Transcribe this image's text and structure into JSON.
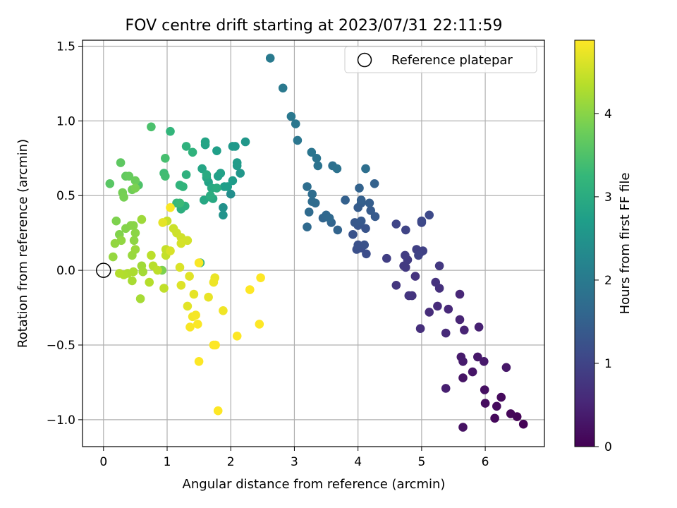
{
  "chart_data": {
    "type": "scatter",
    "title": "FOV centre drift starting at 2023/07/31 22:11:59",
    "xlabel": "Angular distance from reference (arcmin)",
    "ylabel": "Rotation from reference (arcmin)",
    "xlim": [
      -0.33,
      6.93
    ],
    "ylim": [
      -1.18,
      1.54
    ],
    "xticks": [
      0,
      1,
      2,
      3,
      4,
      5,
      6
    ],
    "yticks": [
      -1.0,
      -0.5,
      0.0,
      0.5,
      1.0,
      1.5
    ],
    "ytick_labels": [
      "−1.0",
      "−0.5",
      "0.0",
      "0.5",
      "1.0",
      "1.5"
    ],
    "grid": true,
    "legend": {
      "position": "top-right",
      "entries": [
        "Reference platepar"
      ]
    },
    "reference_point": {
      "x": 0,
      "y": 0
    },
    "colorbar": {
      "label": "Hours from first FF file",
      "colormap": "viridis",
      "range": [
        0,
        4.88
      ],
      "ticks": [
        0,
        1,
        2,
        3,
        4
      ],
      "colors": [
        "#440154",
        "#482878",
        "#3e4989",
        "#31688e",
        "#26828e",
        "#1f9e89",
        "#35b779",
        "#6ece58",
        "#b5de2b",
        "#fde725"
      ]
    },
    "points": [
      [
        6.6,
        -1.03,
        0.02
      ],
      [
        6.5,
        -0.98,
        0.05
      ],
      [
        6.4,
        -0.96,
        0.08
      ],
      [
        6.15,
        -0.99,
        0.1
      ],
      [
        6.25,
        -0.85,
        0.12
      ],
      [
        6.18,
        -0.91,
        0.14
      ],
      [
        6.0,
        -0.89,
        0.17
      ],
      [
        5.99,
        -0.8,
        0.2
      ],
      [
        5.65,
        -1.05,
        0.23
      ],
      [
        5.65,
        -0.72,
        0.26
      ],
      [
        5.8,
        -0.68,
        0.28
      ],
      [
        6.33,
        -0.65,
        0.3
      ],
      [
        5.88,
        -0.58,
        0.32
      ],
      [
        5.98,
        -0.61,
        0.34
      ],
      [
        5.62,
        -0.58,
        0.36
      ],
      [
        5.65,
        -0.61,
        0.38
      ],
      [
        5.38,
        -0.79,
        0.42
      ],
      [
        5.9,
        -0.38,
        0.45
      ],
      [
        5.67,
        -0.4,
        0.48
      ],
      [
        5.6,
        -0.33,
        0.5
      ],
      [
        5.6,
        -0.16,
        0.53
      ],
      [
        5.42,
        -0.26,
        0.56
      ],
      [
        5.38,
        -0.42,
        0.58
      ],
      [
        5.25,
        -0.24,
        0.6
      ],
      [
        5.12,
        -0.28,
        0.62
      ],
      [
        4.98,
        -0.39,
        0.65
      ],
      [
        5.28,
        -0.12,
        0.68
      ],
      [
        5.22,
        -0.08,
        0.7
      ],
      [
        4.9,
        -0.04,
        0.72
      ],
      [
        4.85,
        -0.17,
        0.74
      ],
      [
        4.8,
        -0.17,
        0.76
      ],
      [
        4.6,
        -0.1,
        0.78
      ],
      [
        5.28,
        0.03,
        0.8
      ],
      [
        4.75,
        0.02,
        0.82
      ],
      [
        4.72,
        0.03,
        0.84
      ],
      [
        4.78,
        0.07,
        0.86
      ],
      [
        4.74,
        0.1,
        0.88
      ],
      [
        4.45,
        0.08,
        0.9
      ],
      [
        4.98,
        0.12,
        0.92
      ],
      [
        4.92,
        0.14,
        0.94
      ],
      [
        5.02,
        0.13,
        0.96
      ],
      [
        4.95,
        0.1,
        0.98
      ],
      [
        4.75,
        0.27,
        1.0
      ],
      [
        4.6,
        0.31,
        1.02
      ],
      [
        5.0,
        0.32,
        1.05
      ],
      [
        5.0,
        0.33,
        1.08
      ],
      [
        5.12,
        0.37,
        1.1
      ],
      [
        4.13,
        0.11,
        1.15
      ],
      [
        4.05,
        0.15,
        1.18
      ],
      [
        3.98,
        0.14,
        1.2
      ],
      [
        4.0,
        0.17,
        1.22
      ],
      [
        4.1,
        0.17,
        1.24
      ],
      [
        3.92,
        0.24,
        1.26
      ],
      [
        4.12,
        0.28,
        1.28
      ],
      [
        4.0,
        0.3,
        1.3
      ],
      [
        4.02,
        0.32,
        1.32
      ],
      [
        3.95,
        0.32,
        1.34
      ],
      [
        4.05,
        0.33,
        1.36
      ],
      [
        4.27,
        0.36,
        1.38
      ],
      [
        4.2,
        0.4,
        1.4
      ],
      [
        4.0,
        0.42,
        1.42
      ],
      [
        4.05,
        0.45,
        1.44
      ],
      [
        4.18,
        0.45,
        1.46
      ],
      [
        4.05,
        0.47,
        1.48
      ],
      [
        3.8,
        0.47,
        1.5
      ],
      [
        4.26,
        0.58,
        1.52
      ],
      [
        4.02,
        0.55,
        1.54
      ],
      [
        3.68,
        0.27,
        1.56
      ],
      [
        3.58,
        0.32,
        1.58
      ],
      [
        3.45,
        0.35,
        1.6
      ],
      [
        3.5,
        0.37,
        1.62
      ],
      [
        3.55,
        0.35,
        1.64
      ],
      [
        3.2,
        0.29,
        1.66
      ],
      [
        3.23,
        0.39,
        1.68
      ],
      [
        3.33,
        0.45,
        1.7
      ],
      [
        3.28,
        0.46,
        1.72
      ],
      [
        3.28,
        0.51,
        1.74
      ],
      [
        3.2,
        0.56,
        1.76
      ],
      [
        4.12,
        0.68,
        1.78
      ],
      [
        3.6,
        0.7,
        1.8
      ],
      [
        3.67,
        0.68,
        1.83
      ],
      [
        3.37,
        0.7,
        1.86
      ],
      [
        3.35,
        0.75,
        1.88
      ],
      [
        3.27,
        0.79,
        1.9
      ],
      [
        3.05,
        0.87,
        1.92
      ],
      [
        3.02,
        0.98,
        1.94
      ],
      [
        2.95,
        1.03,
        1.96
      ],
      [
        2.82,
        1.22,
        1.98
      ],
      [
        2.62,
        1.42,
        2.0
      ],
      [
        2.0,
        0.51,
        2.4
      ],
      [
        1.88,
        0.42,
        2.45
      ],
      [
        1.88,
        0.37,
        2.5
      ],
      [
        2.15,
        0.65,
        2.55
      ],
      [
        2.23,
        0.86,
        2.58
      ],
      [
        2.07,
        0.83,
        2.6
      ],
      [
        2.03,
        0.83,
        2.62
      ],
      [
        2.1,
        0.7,
        2.64
      ],
      [
        2.1,
        0.72,
        2.66
      ],
      [
        2.03,
        0.6,
        2.68
      ],
      [
        1.95,
        0.56,
        2.7
      ],
      [
        1.9,
        0.56,
        2.72
      ],
      [
        1.78,
        0.8,
        2.74
      ],
      [
        1.8,
        0.63,
        2.76
      ],
      [
        1.84,
        0.65,
        2.78
      ],
      [
        1.65,
        0.59,
        2.8
      ],
      [
        1.6,
        0.84,
        2.82
      ],
      [
        1.6,
        0.86,
        2.84
      ],
      [
        1.55,
        0.68,
        2.86
      ],
      [
        1.62,
        0.62,
        2.88
      ],
      [
        1.58,
        0.47,
        2.9
      ],
      [
        1.72,
        0.48,
        2.92
      ],
      [
        1.7,
        0.55,
        2.94
      ],
      [
        1.68,
        0.49,
        2.96
      ],
      [
        1.62,
        0.64,
        2.98
      ],
      [
        1.78,
        0.55,
        3.0
      ],
      [
        1.68,
        0.5,
        3.02
      ],
      [
        1.22,
        0.41,
        3.06
      ],
      [
        1.28,
        0.43,
        3.08
      ],
      [
        1.3,
        0.64,
        3.1
      ],
      [
        1.3,
        0.83,
        3.12
      ],
      [
        1.4,
        0.79,
        3.14
      ],
      [
        1.2,
        0.57,
        3.16
      ],
      [
        1.25,
        0.56,
        3.18
      ],
      [
        1.05,
        0.93,
        3.2
      ],
      [
        1.52,
        0.05,
        3.22
      ],
      [
        1.15,
        0.45,
        3.26
      ],
      [
        1.2,
        0.45,
        3.3
      ],
      [
        0.95,
        0.65,
        3.34
      ],
      [
        0.97,
        0.63,
        3.38
      ],
      [
        0.97,
        0.75,
        3.42
      ],
      [
        0.75,
        0.96,
        3.46
      ],
      [
        0.55,
        0.57,
        3.5
      ],
      [
        0.1,
        0.58,
        3.6
      ],
      [
        0.27,
        0.72,
        3.64
      ],
      [
        0.35,
        0.63,
        3.68
      ],
      [
        0.4,
        0.63,
        3.72
      ],
      [
        0.5,
        0.6,
        3.76
      ],
      [
        0.45,
        0.54,
        3.8
      ],
      [
        0.3,
        0.52,
        3.84
      ],
      [
        0.32,
        0.49,
        3.86
      ],
      [
        0.5,
        0.55,
        3.88
      ],
      [
        0.92,
        0.0,
        3.9
      ],
      [
        0.2,
        0.33,
        3.92
      ],
      [
        0.25,
        0.24,
        3.94
      ],
      [
        0.35,
        0.28,
        3.96
      ],
      [
        0.43,
        0.3,
        3.98
      ],
      [
        0.47,
        0.3,
        4.0
      ],
      [
        0.5,
        0.25,
        4.02
      ],
      [
        0.48,
        0.2,
        4.04
      ],
      [
        0.28,
        0.2,
        4.06
      ],
      [
        0.18,
        0.18,
        4.08
      ],
      [
        0.15,
        0.09,
        4.1
      ],
      [
        0.45,
        0.1,
        4.12
      ],
      [
        0.5,
        0.14,
        4.14
      ],
      [
        0.6,
        0.34,
        4.16
      ],
      [
        0.6,
        0.03,
        4.18
      ],
      [
        0.62,
        -0.01,
        4.2
      ],
      [
        0.58,
        -0.19,
        4.22
      ],
      [
        0.45,
        -0.07,
        4.24
      ],
      [
        0.47,
        -0.01,
        4.26
      ],
      [
        0.38,
        -0.02,
        4.28
      ],
      [
        0.32,
        -0.03,
        4.3
      ],
      [
        0.25,
        -0.02,
        4.32
      ],
      [
        0.72,
        -0.08,
        4.34
      ],
      [
        0.78,
        0.03,
        4.36
      ],
      [
        0.75,
        0.1,
        4.38
      ],
      [
        0.85,
        0.0,
        4.4
      ],
      [
        0.95,
        -0.12,
        4.42
      ],
      [
        0.98,
        0.1,
        4.44
      ],
      [
        0.98,
        0.14,
        4.46
      ],
      [
        1.0,
        0.33,
        4.48
      ],
      [
        1.1,
        0.28,
        4.5
      ],
      [
        1.15,
        0.25,
        4.52
      ],
      [
        1.22,
        0.22,
        4.54
      ],
      [
        1.32,
        0.2,
        4.56
      ],
      [
        1.22,
        0.18,
        4.58
      ],
      [
        1.05,
        0.13,
        4.6
      ],
      [
        1.2,
        0.02,
        4.62
      ],
      [
        1.22,
        -0.1,
        4.64
      ],
      [
        1.35,
        -0.04,
        4.66
      ],
      [
        1.32,
        -0.24,
        4.68
      ],
      [
        1.42,
        -0.16,
        4.7
      ],
      [
        1.65,
        -0.18,
        4.72
      ],
      [
        1.75,
        -0.05,
        4.74
      ],
      [
        1.73,
        -0.08,
        4.76
      ],
      [
        1.88,
        -0.27,
        4.78
      ],
      [
        1.4,
        -0.31,
        4.8
      ],
      [
        1.45,
        -0.3,
        4.82
      ],
      [
        1.36,
        -0.38,
        4.84
      ],
      [
        1.48,
        -0.36,
        4.86
      ],
      [
        1.5,
        -0.61,
        4.87
      ],
      [
        1.73,
        -0.5,
        4.87
      ],
      [
        1.76,
        -0.5,
        4.88
      ],
      [
        1.8,
        -0.94,
        4.88
      ],
      [
        2.1,
        -0.44,
        4.88
      ],
      [
        2.3,
        -0.13,
        4.88
      ],
      [
        2.47,
        -0.05,
        4.88
      ],
      [
        2.45,
        -0.36,
        4.88
      ],
      [
        1.5,
        0.05,
        4.85
      ],
      [
        1.05,
        0.42,
        4.86
      ],
      [
        0.93,
        0.32,
        4.7
      ]
    ]
  }
}
